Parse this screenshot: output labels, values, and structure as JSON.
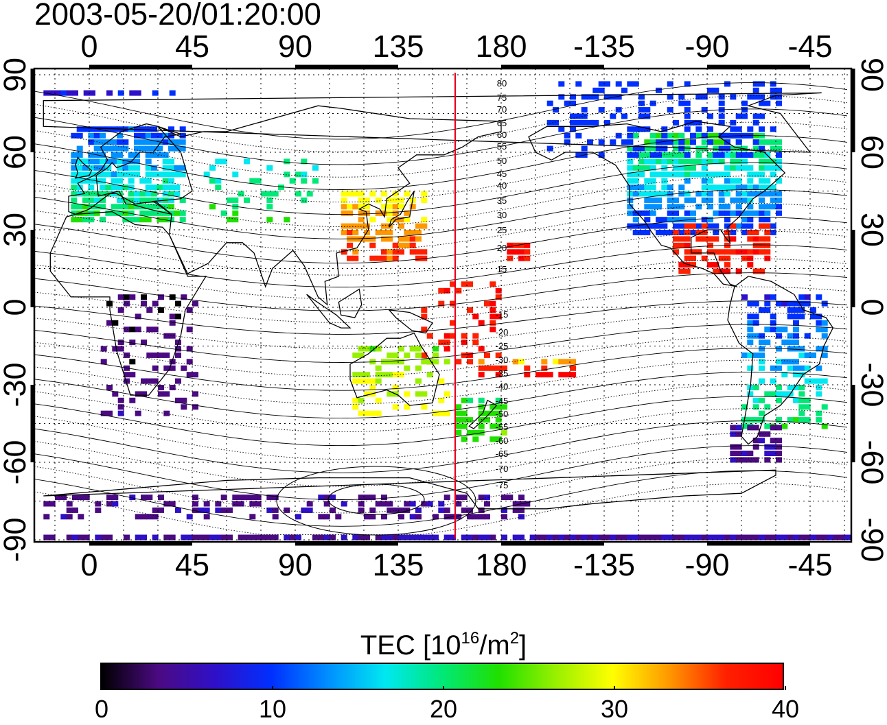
{
  "timestamp": "2003-05-20/01:20:00",
  "map": {
    "top_axis_labels": [
      "0",
      "45",
      "90",
      "135",
      "180",
      "-135",
      "-90",
      "-45"
    ],
    "bottom_axis_labels": [
      "0",
      "45",
      "90",
      "135",
      "180",
      "-135",
      "-90",
      "-45"
    ],
    "left_axis_labels": [
      "90",
      "60",
      "30",
      "0",
      "-30",
      "-60",
      "-90"
    ],
    "right_axis_labels": [
      "90",
      "60",
      "30",
      "0",
      "-30",
      "-60",
      "-90"
    ],
    "grid": "dotted, every 15 degrees",
    "marker_line_color": "#e8001c",
    "contour_labels_north": [
      "80",
      "75",
      "70",
      "65",
      "60",
      "55",
      "50",
      "45",
      "40",
      "35",
      "30",
      "25",
      "20",
      "15"
    ],
    "contour_labels_south": [
      "-15",
      "-20",
      "-25",
      "-30",
      "-35",
      "-40",
      "-45",
      "-50",
      "-55",
      "-60",
      "-65",
      "-70",
      "-75"
    ]
  },
  "colorbar": {
    "title_prefix": "TEC  [10",
    "title_exp": "16",
    "title_mid": "/m",
    "title_exp2": "2",
    "title_suffix": "]",
    "ticks": [
      "0",
      "10",
      "20",
      "30",
      "40"
    ],
    "colors": [
      "#000000",
      "#4b0a82",
      "#2f10c8",
      "#0030ff",
      "#0090ff",
      "#00e8f0",
      "#00e878",
      "#20e000",
      "#98f000",
      "#ffff00",
      "#ff9800",
      "#ff2000",
      "#ff0000"
    ]
  }
}
